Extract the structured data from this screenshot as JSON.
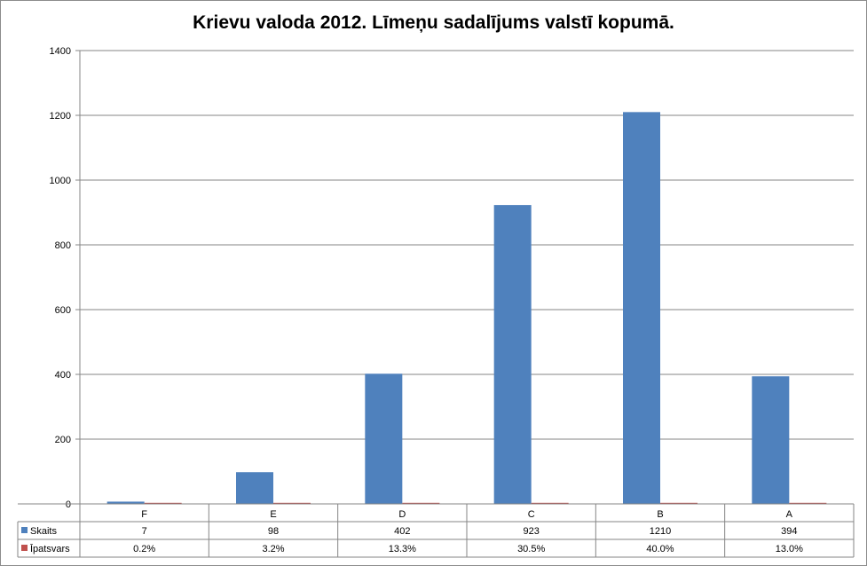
{
  "chart_data": {
    "type": "bar",
    "title": "Krievu valoda 2012. Līmeņu sadalījums valstī kopumā.",
    "categories": [
      "F",
      "E",
      "D",
      "C",
      "B",
      "A"
    ],
    "series": [
      {
        "name": "Skaits",
        "color": "#4f81bd",
        "values": [
          7,
          98,
          402,
          923,
          1210,
          394
        ],
        "table_labels": [
          "7",
          "98",
          "402",
          "923",
          "1210",
          "394"
        ]
      },
      {
        "name": "Īpatsvars",
        "color": "#c0504d",
        "values": [
          0.002,
          0.032,
          0.133,
          0.305,
          0.4,
          0.13
        ],
        "table_labels": [
          "0.2%",
          "3.2%",
          "13.3%",
          "30.5%",
          "40.0%",
          "13.0%"
        ]
      }
    ],
    "yticks": [
      0,
      200,
      400,
      600,
      800,
      1000,
      1200,
      1400
    ],
    "ylim": [
      0,
      1400
    ],
    "grid": true,
    "legend": "data-table"
  }
}
